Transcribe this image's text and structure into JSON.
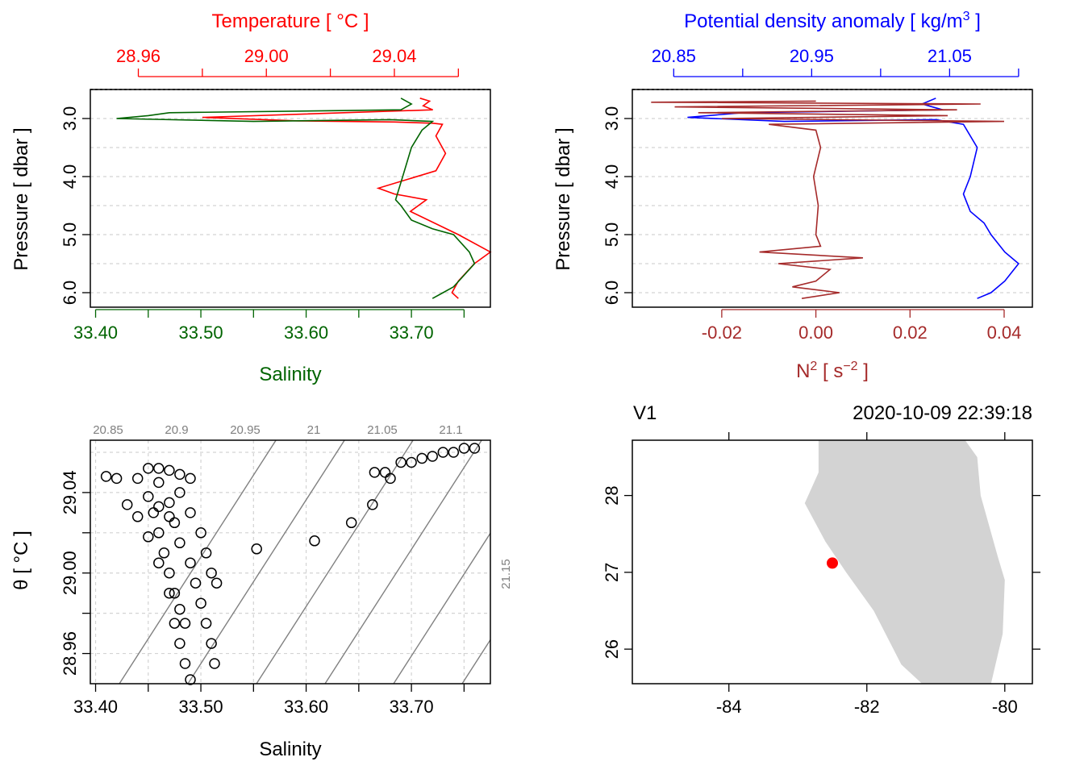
{
  "colors": {
    "temperature": "#ff0000",
    "salinity": "#006400",
    "density": "#0000ff",
    "n2": "#a52a2a",
    "land": "#d3d3d3",
    "station": "#ff0000",
    "grid": "#d3d3d3",
    "isopycnal": "#808080",
    "axis": "#000000"
  },
  "chart_data": [
    {
      "type": "line",
      "panel": "pressure-profile-temperature-salinity",
      "title_top": "Temperature [ °C ]",
      "xlabel": "Salinity",
      "ylabel": "Pressure [ dbar ]",
      "y_reversed": true,
      "ylim": [
        6.25,
        2.5
      ],
      "y_ticks": [
        "3.0",
        "4.0",
        "5.0",
        "6.0"
      ],
      "top_axis": {
        "name": "Temperature",
        "lim": [
          28.945,
          29.07
        ],
        "ticks": [
          "28.96",
          "29.00",
          "29.04"
        ]
      },
      "bottom_axis": {
        "name": "Salinity",
        "lim": [
          33.395,
          33.775
        ],
        "ticks": [
          "33.40",
          "33.50",
          "33.60",
          "33.70"
        ]
      },
      "grid": true,
      "series": [
        {
          "name": "Temperature",
          "points": [
            [
              29.048,
              2.65
            ],
            [
              29.051,
              2.7
            ],
            [
              29.049,
              2.78
            ],
            [
              29.052,
              2.85
            ],
            [
              28.98,
              2.98
            ],
            [
              29.01,
              3.04
            ],
            [
              29.04,
              3.06
            ],
            [
              29.052,
              3.08
            ],
            [
              29.055,
              3.1
            ],
            [
              29.053,
              3.3
            ],
            [
              29.056,
              3.6
            ],
            [
              29.053,
              3.9
            ],
            [
              29.035,
              4.2
            ],
            [
              29.04,
              4.3
            ],
            [
              29.05,
              4.4
            ],
            [
              29.045,
              4.6
            ],
            [
              29.06,
              5.0
            ],
            [
              29.07,
              5.3
            ],
            [
              29.065,
              5.5
            ],
            [
              29.06,
              5.8
            ],
            [
              29.058,
              6.0
            ],
            [
              29.06,
              6.1
            ]
          ]
        },
        {
          "name": "Salinity",
          "points": [
            [
              33.69,
              2.65
            ],
            [
              33.7,
              2.75
            ],
            [
              33.69,
              2.85
            ],
            [
              33.47,
              2.9
            ],
            [
              33.45,
              2.95
            ],
            [
              33.42,
              3.0
            ],
            [
              33.55,
              3.05
            ],
            [
              33.68,
              3.02
            ],
            [
              33.72,
              3.05
            ],
            [
              33.71,
              3.2
            ],
            [
              33.7,
              3.5
            ],
            [
              33.695,
              3.8
            ],
            [
              33.69,
              4.1
            ],
            [
              33.685,
              4.4
            ],
            [
              33.69,
              4.5
            ],
            [
              33.7,
              4.75
            ],
            [
              33.72,
              4.9
            ],
            [
              33.74,
              5.0
            ],
            [
              33.755,
              5.3
            ],
            [
              33.76,
              5.5
            ],
            [
              33.75,
              5.7
            ],
            [
              33.74,
              5.9
            ],
            [
              33.73,
              6.0
            ],
            [
              33.72,
              6.1
            ]
          ]
        }
      ]
    },
    {
      "type": "line",
      "panel": "pressure-profile-density-n2",
      "title_top": "Potential density anomaly [ kg/m",
      "title_top_sup": "3",
      "title_top_end": " ]",
      "xlabel": "N",
      "xlabel_sup": "2",
      "xlabel_unit": " [ s",
      "xlabel_unit_sup": "−2",
      "xlabel_end": " ]",
      "ylabel": "Pressure [ dbar ]",
      "y_reversed": true,
      "ylim": [
        6.25,
        2.5
      ],
      "y_ticks": [
        "3.0",
        "4.0",
        "5.0",
        "6.0"
      ],
      "top_axis": {
        "name": "Potential density anomaly",
        "lim": [
          20.82,
          21.11
        ],
        "ticks": [
          "20.85",
          "20.95",
          "21.05"
        ]
      },
      "bottom_axis": {
        "name": "N2",
        "lim": [
          -0.039,
          0.046
        ],
        "ticks": [
          "-0.02",
          "0.00",
          "0.02",
          "0.04"
        ]
      },
      "grid": true,
      "series": [
        {
          "name": "Potential density anomaly",
          "points": [
            [
              21.04,
              2.65
            ],
            [
              21.03,
              2.75
            ],
            [
              21.045,
              2.85
            ],
            [
              20.9,
              2.9
            ],
            [
              20.86,
              2.98
            ],
            [
              20.93,
              3.05
            ],
            [
              21.04,
              3.02
            ],
            [
              21.06,
              3.1
            ],
            [
              21.07,
              3.5
            ],
            [
              21.065,
              4.0
            ],
            [
              21.06,
              4.3
            ],
            [
              21.065,
              4.6
            ],
            [
              21.075,
              4.8
            ],
            [
              21.08,
              5.0
            ],
            [
              21.09,
              5.3
            ],
            [
              21.1,
              5.5
            ],
            [
              21.09,
              5.8
            ],
            [
              21.08,
              6.0
            ],
            [
              21.07,
              6.1
            ]
          ]
        },
        {
          "name": "N2",
          "points": [
            [
              0.0,
              2.7
            ],
            [
              -0.035,
              2.72
            ],
            [
              0.035,
              2.75
            ],
            [
              -0.03,
              2.8
            ],
            [
              0.03,
              2.85
            ],
            [
              -0.025,
              2.9
            ],
            [
              0.028,
              2.95
            ],
            [
              -0.02,
              3.0
            ],
            [
              0.04,
              3.05
            ],
            [
              -0.01,
              3.1
            ],
            [
              0.0,
              3.2
            ],
            [
              0.001,
              3.5
            ],
            [
              -0.0005,
              4.0
            ],
            [
              0.0005,
              4.5
            ],
            [
              0.0,
              5.0
            ],
            [
              0.001,
              5.2
            ],
            [
              -0.012,
              5.3
            ],
            [
              0.01,
              5.4
            ],
            [
              -0.008,
              5.5
            ],
            [
              0.003,
              5.6
            ],
            [
              0.0,
              5.8
            ],
            [
              -0.005,
              5.9
            ],
            [
              0.005,
              6.0
            ],
            [
              -0.003,
              6.1
            ]
          ]
        }
      ]
    },
    {
      "type": "scatter",
      "panel": "ts-diagram",
      "xlabel": "Salinity",
      "ylabel": "θ [ °C ]",
      "xlim": [
        33.395,
        33.775
      ],
      "ylim": [
        28.945,
        29.066
      ],
      "x_ticks": [
        "33.40",
        "33.50",
        "33.60",
        "33.70"
      ],
      "y_ticks": [
        "28.96",
        "29.00",
        "29.04"
      ],
      "isopycnal_labels": [
        "20.85",
        "20.9",
        "20.95",
        "21",
        "21.05",
        "21.1",
        "21.15"
      ],
      "grid": true,
      "points": [
        [
          33.41,
          29.048
        ],
        [
          33.42,
          29.047
        ],
        [
          33.44,
          29.047
        ],
        [
          33.45,
          29.052
        ],
        [
          33.46,
          29.052
        ],
        [
          33.47,
          29.051
        ],
        [
          33.48,
          29.049
        ],
        [
          33.49,
          29.047
        ],
        [
          33.43,
          29.034
        ],
        [
          33.44,
          29.028
        ],
        [
          33.45,
          29.018
        ],
        [
          33.46,
          29.005
        ],
        [
          33.47,
          28.99
        ],
        [
          33.475,
          28.975
        ],
        [
          33.48,
          28.965
        ],
        [
          33.485,
          28.955
        ],
        [
          33.49,
          28.947
        ],
        [
          33.455,
          29.03
        ],
        [
          33.46,
          29.02
        ],
        [
          33.465,
          29.01
        ],
        [
          33.47,
          29.0
        ],
        [
          33.475,
          28.99
        ],
        [
          33.48,
          28.982
        ],
        [
          33.485,
          28.975
        ],
        [
          33.46,
          29.045
        ],
        [
          33.47,
          29.035
        ],
        [
          33.475,
          29.025
        ],
        [
          33.48,
          29.015
        ],
        [
          33.49,
          29.005
        ],
        [
          33.495,
          28.995
        ],
        [
          33.5,
          28.985
        ],
        [
          33.505,
          28.975
        ],
        [
          33.51,
          28.965
        ],
        [
          33.513,
          28.955
        ],
        [
          33.48,
          29.04
        ],
        [
          33.49,
          29.03
        ],
        [
          33.5,
          29.02
        ],
        [
          33.505,
          29.01
        ],
        [
          33.51,
          29.0
        ],
        [
          33.515,
          28.995
        ],
        [
          33.45,
          29.038
        ],
        [
          33.46,
          29.033
        ],
        [
          33.47,
          29.028
        ],
        [
          33.553,
          29.012
        ],
        [
          33.608,
          29.016
        ],
        [
          33.643,
          29.025
        ],
        [
          33.663,
          29.034
        ],
        [
          33.665,
          29.05
        ],
        [
          33.675,
          29.05
        ],
        [
          33.68,
          29.047
        ],
        [
          33.69,
          29.055
        ],
        [
          33.7,
          29.055
        ],
        [
          33.71,
          29.057
        ],
        [
          33.72,
          29.058
        ],
        [
          33.73,
          29.06
        ],
        [
          33.74,
          29.06
        ],
        [
          33.75,
          29.062
        ],
        [
          33.76,
          29.062
        ]
      ]
    },
    {
      "type": "map",
      "panel": "station-map",
      "title_left": "V1",
      "title_right": "2020-10-09 22:39:18",
      "xlim": [
        -85.4,
        -79.6
      ],
      "ylim": [
        25.55,
        28.72
      ],
      "x_ticks": [
        -84,
        -82,
        -80
      ],
      "x_labels": [
        "-84",
        "-82",
        "-80"
      ],
      "y_ticks": [
        26,
        27,
        28
      ],
      "y_labels": [
        "26",
        "27",
        "28"
      ],
      "station": {
        "lon": -82.5,
        "lat": 27.12
      }
    }
  ]
}
